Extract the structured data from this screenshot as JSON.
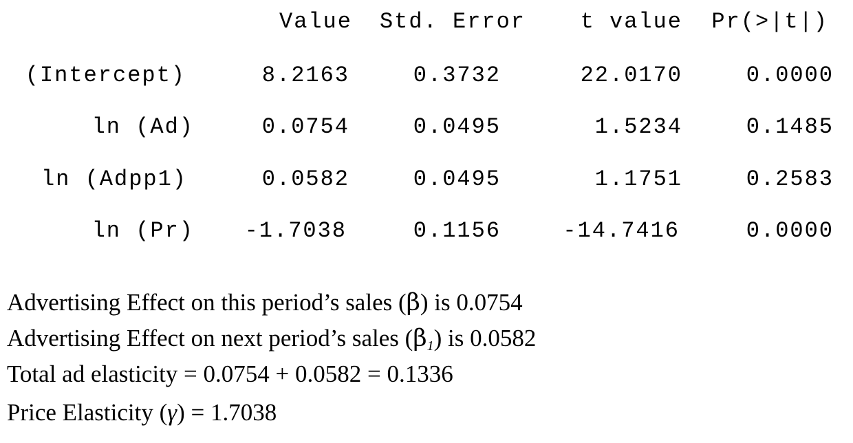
{
  "table": {
    "headers": [
      "Value",
      "Std. Error",
      "t value",
      "Pr(>|t|)"
    ],
    "rows": [
      {
        "label": "(Intercept)",
        "value": "8.2163",
        "std_error": "0.3732",
        "t_value": "22.0170",
        "p_value": "0.0000"
      },
      {
        "label": "ln (Ad)",
        "value": "0.0754",
        "std_error": "0.0495",
        "t_value": "1.5234",
        "p_value": "0.1485"
      },
      {
        "label": "ln (Adpp1)",
        "value": "0.0582",
        "std_error": "0.0495",
        "t_value": "1.1751",
        "p_value": "0.2583"
      },
      {
        "label": "ln (Pr)",
        "value": "-1.7038",
        "std_error": "0.1156",
        "t_value": "-14.7416",
        "p_value": "0.0000"
      }
    ]
  },
  "notes": {
    "line1_prefix": "Advertising Effect on this period’s sales (",
    "line1_symbol": "β",
    "line1_suffix": ") is 0.0754",
    "line2_prefix": "Advertising Effect on next period’s sales (",
    "line2_symbol": "β",
    "line2_sub": "1",
    "line2_suffix": ") is 0.0582",
    "line3": "Total ad elasticity = 0.0754 + 0.0582 = 0.1336",
    "line4_prefix": "Price Elasticity (",
    "line4_symbol": "γ",
    "line4_suffix": ") = 1.7038"
  }
}
